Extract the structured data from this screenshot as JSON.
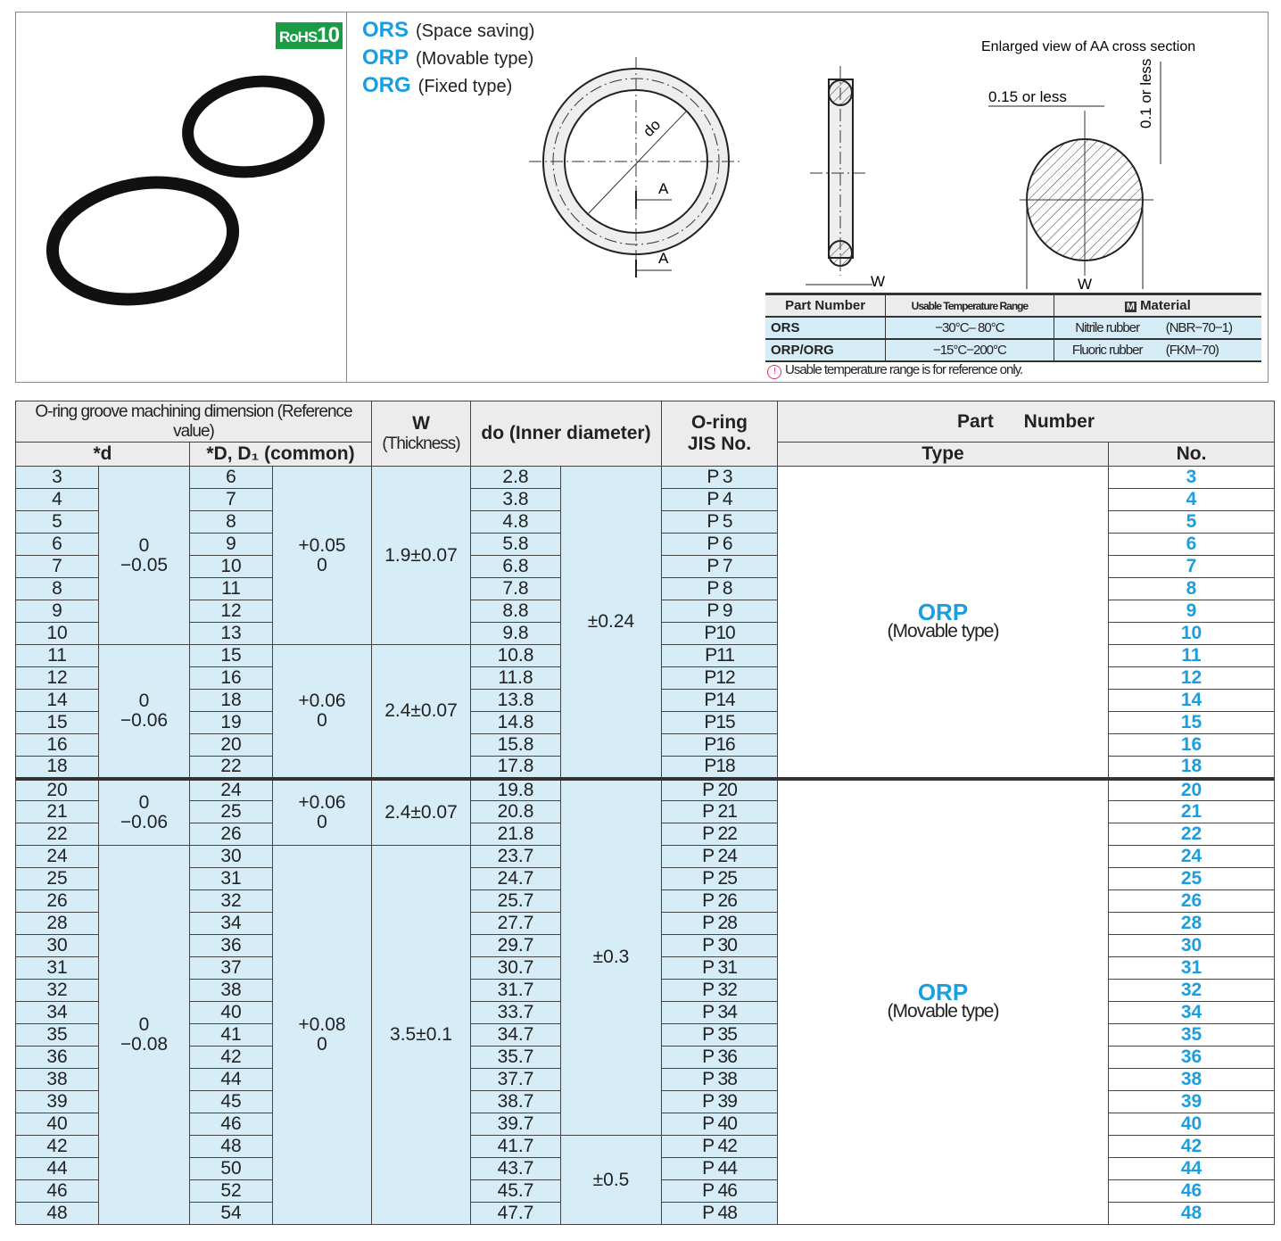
{
  "header": {
    "rohs": {
      "text": "RoHS",
      "num": "10",
      "color": "#1a9b45"
    },
    "types": [
      {
        "code": "ORS",
        "desc": "(Space saving)"
      },
      {
        "code": "ORP",
        "desc": "(Movable type)"
      },
      {
        "code": "ORG",
        "desc": "(Fixed type)"
      }
    ],
    "diagram": {
      "enlarged_title": "Enlarged view of AA cross section",
      "do_label": "do",
      "a_label": "A",
      "w_label": "W",
      "dim1": "0.15 or less",
      "dim2": "0.1 or less"
    },
    "accent_color": "#1a9ee0"
  },
  "material_table": {
    "headers": [
      "Part Number",
      "Usable Temperature Range",
      "Material"
    ],
    "material_icon": "M",
    "rows": [
      {
        "part": "ORS",
        "temp": "−30°C– 80°C",
        "material": "Nitrile rubber",
        "grade": "(NBR−70−1)"
      },
      {
        "part": "ORP/ORG",
        "temp": "−15°C−200°C",
        "material": "Fluoric rubber",
        "grade": "(FKM−70)"
      }
    ],
    "note": "Usable temperature range is for reference only."
  },
  "table": {
    "headers": {
      "groove": "O-ring groove machining dimension (Reference value)",
      "d": "*d",
      "D": "*D, D₁ (common)",
      "w1": "W",
      "w2": "(Thickness)",
      "do": "do (Inner diameter)",
      "jis1": "O-ring",
      "jis2": "JIS No.",
      "pn": "Part Number",
      "type": "Type",
      "no": "No."
    },
    "sections": [
      {
        "type_code": "ORP",
        "type_desc": "(Movable type)",
        "rows": [
          [
            "3",
            "6",
            "2.8",
            "P 3",
            "3"
          ],
          [
            "4",
            "7",
            "3.8",
            "P 4",
            "4"
          ],
          [
            "5",
            "8",
            "4.8",
            "P 5",
            "5"
          ],
          [
            "6",
            "9",
            "5.8",
            "P 6",
            "6"
          ],
          [
            "7",
            "10",
            "6.8",
            "P 7",
            "7"
          ],
          [
            "8",
            "11",
            "7.8",
            "P 8",
            "8"
          ],
          [
            "9",
            "12",
            "8.8",
            "P 9",
            "9"
          ],
          [
            "10",
            "13",
            "9.8",
            "P10",
            "10"
          ],
          [
            "11",
            "15",
            "10.8",
            "P11",
            "11"
          ],
          [
            "12",
            "16",
            "11.8",
            "P12",
            "12"
          ],
          [
            "14",
            "18",
            "13.8",
            "P14",
            "14"
          ],
          [
            "15",
            "19",
            "14.8",
            "P15",
            "15"
          ],
          [
            "16",
            "20",
            "15.8",
            "P16",
            "16"
          ],
          [
            "18",
            "22",
            "17.8",
            "P18",
            "18"
          ]
        ],
        "groups": [
          {
            "rows": 8,
            "d_tol": [
              "0",
              "−0.05"
            ],
            "D_tol": [
              "+0.05",
              "0"
            ],
            "w": "1.9±0.07"
          },
          {
            "rows": 6,
            "d_tol": [
              "0",
              "−0.06"
            ],
            "D_tol": [
              "+0.06",
              "0"
            ],
            "w": "2.4±0.07"
          }
        ],
        "do_tol": [
          {
            "rows": 14,
            "tol": "±0.24"
          }
        ]
      },
      {
        "type_code": "ORP",
        "type_desc": "(Movable type)",
        "rows": [
          [
            "20",
            "24",
            "19.8",
            "P 20",
            "20"
          ],
          [
            "21",
            "25",
            "20.8",
            "P 21",
            "21"
          ],
          [
            "22",
            "26",
            "21.8",
            "P 22",
            "22"
          ],
          [
            "24",
            "30",
            "23.7",
            "P 24",
            "24"
          ],
          [
            "25",
            "31",
            "24.7",
            "P 25",
            "25"
          ],
          [
            "26",
            "32",
            "25.7",
            "P 26",
            "26"
          ],
          [
            "28",
            "34",
            "27.7",
            "P 28",
            "28"
          ],
          [
            "30",
            "36",
            "29.7",
            "P 30",
            "30"
          ],
          [
            "31",
            "37",
            "30.7",
            "P 31",
            "31"
          ],
          [
            "32",
            "38",
            "31.7",
            "P 32",
            "32"
          ],
          [
            "34",
            "40",
            "33.7",
            "P 34",
            "34"
          ],
          [
            "35",
            "41",
            "34.7",
            "P 35",
            "35"
          ],
          [
            "36",
            "42",
            "35.7",
            "P 36",
            "36"
          ],
          [
            "38",
            "44",
            "37.7",
            "P 38",
            "38"
          ],
          [
            "39",
            "45",
            "38.7",
            "P 39",
            "39"
          ],
          [
            "40",
            "46",
            "39.7",
            "P 40",
            "40"
          ],
          [
            "42",
            "48",
            "41.7",
            "P 42",
            "42"
          ],
          [
            "44",
            "50",
            "43.7",
            "P 44",
            "44"
          ],
          [
            "46",
            "52",
            "45.7",
            "P 46",
            "46"
          ],
          [
            "48",
            "54",
            "47.7",
            "P 48",
            "48"
          ]
        ],
        "groups": [
          {
            "rows": 3,
            "d_tol": [
              "0",
              "−0.06"
            ],
            "D_tol": [
              "+0.06",
              "0"
            ],
            "w": "2.4±0.07"
          },
          {
            "rows": 17,
            "d_tol": [
              "0",
              "−0.08"
            ],
            "D_tol": [
              "+0.08",
              "0"
            ],
            "w": "3.5±0.1"
          }
        ],
        "do_tol": [
          {
            "rows": 16,
            "tol": "±0.3"
          },
          {
            "rows": 4,
            "tol": "±0.5"
          }
        ]
      }
    ]
  }
}
